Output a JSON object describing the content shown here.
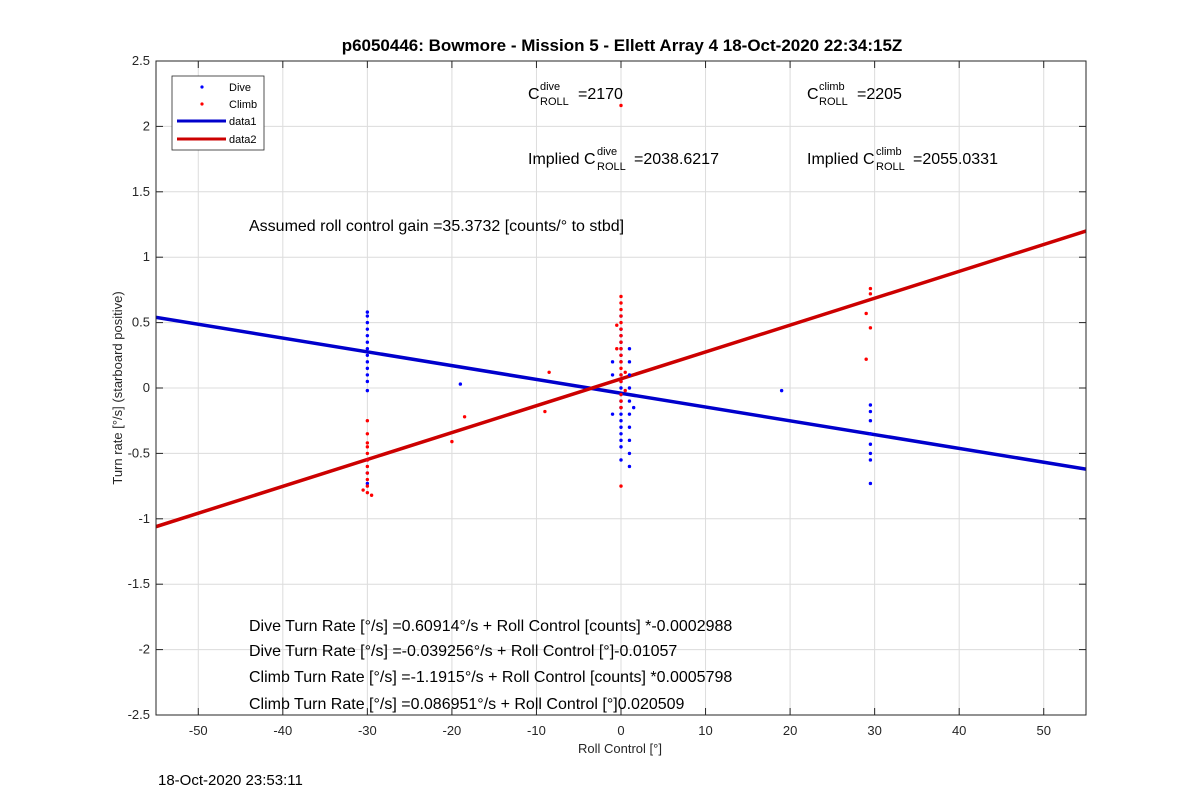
{
  "chart_data": {
    "type": "scatter",
    "title": "p6050446: Bowmore - Mission 5 - Ellett Array 4 18-Oct-2020 22:34:15Z",
    "xlabel": "Roll Control [°]",
    "ylabel": "Turn rate [°/s] (starboard positive)",
    "xlim": [
      -55,
      55
    ],
    "ylim": [
      -2.5,
      2.5
    ],
    "xticks": [
      -50,
      -40,
      -30,
      -20,
      -10,
      0,
      10,
      20,
      30,
      40,
      50
    ],
    "yticks": [
      -2.5,
      -2,
      -1.5,
      -1,
      -0.5,
      0,
      0.5,
      1,
      1.5,
      2,
      2.5
    ],
    "grid": true,
    "legend_position": "top-left",
    "series": [
      {
        "name": "Dive",
        "kind": "points",
        "color": "#0000ff",
        "points": [
          [
            -30,
            0.58
          ],
          [
            -30,
            0.55
          ],
          [
            -30,
            0.5
          ],
          [
            -30,
            0.45
          ],
          [
            -30,
            0.4
          ],
          [
            -30,
            0.35
          ],
          [
            -30,
            0.3
          ],
          [
            -30,
            0.25
          ],
          [
            -30,
            0.2
          ],
          [
            -30,
            0.15
          ],
          [
            -30,
            0.1
          ],
          [
            -30,
            0.05
          ],
          [
            -30,
            -0.02
          ],
          [
            -30,
            -0.55
          ],
          [
            -30,
            -0.65
          ],
          [
            -30,
            -0.73
          ],
          [
            -19,
            0.03
          ],
          [
            -1,
            0.2
          ],
          [
            -1,
            0.1
          ],
          [
            -1,
            -0.2
          ],
          [
            0,
            0.55
          ],
          [
            0,
            0.45
          ],
          [
            0,
            0.4
          ],
          [
            0,
            0.35
          ],
          [
            0,
            0.3
          ],
          [
            0,
            0.25
          ],
          [
            0,
            0.2
          ],
          [
            0,
            0.1
          ],
          [
            0,
            0.05
          ],
          [
            0,
            0.0
          ],
          [
            0,
            -0.05
          ],
          [
            0,
            -0.1
          ],
          [
            0,
            -0.15
          ],
          [
            0,
            -0.2
          ],
          [
            0,
            -0.25
          ],
          [
            0,
            -0.3
          ],
          [
            0,
            -0.35
          ],
          [
            0,
            -0.4
          ],
          [
            0,
            -0.45
          ],
          [
            0,
            -0.55
          ],
          [
            1,
            0.3
          ],
          [
            1,
            0.2
          ],
          [
            1,
            0.1
          ],
          [
            1,
            0.0
          ],
          [
            1,
            -0.1
          ],
          [
            1,
            -0.2
          ],
          [
            1,
            -0.3
          ],
          [
            1,
            -0.4
          ],
          [
            1,
            -0.5
          ],
          [
            1,
            -0.6
          ],
          [
            1.5,
            -0.15
          ],
          [
            19,
            -0.02
          ],
          [
            29.5,
            -0.13
          ],
          [
            29.5,
            -0.18
          ],
          [
            29.5,
            -0.25
          ],
          [
            29.5,
            -0.35
          ],
          [
            29.5,
            -0.43
          ],
          [
            29.5,
            -0.5
          ],
          [
            29.5,
            -0.55
          ],
          [
            29.5,
            -0.73
          ]
        ]
      },
      {
        "name": "Climb",
        "kind": "points",
        "color": "#ff0000",
        "points": [
          [
            -30,
            -0.25
          ],
          [
            -30,
            -0.35
          ],
          [
            -30,
            -0.42
          ],
          [
            -30,
            -0.45
          ],
          [
            -30,
            -0.5
          ],
          [
            -30,
            -0.55
          ],
          [
            -30,
            -0.6
          ],
          [
            -30,
            -0.65
          ],
          [
            -30,
            -0.7
          ],
          [
            -30,
            -0.75
          ],
          [
            -30,
            -0.8
          ],
          [
            -30.5,
            -0.78
          ],
          [
            -29.5,
            -0.82
          ],
          [
            -20,
            -0.41
          ],
          [
            -18.5,
            -0.22
          ],
          [
            -9,
            -0.18
          ],
          [
            -8.5,
            0.12
          ],
          [
            0,
            2.16
          ],
          [
            0,
            0.7
          ],
          [
            0,
            0.65
          ],
          [
            0,
            0.6
          ],
          [
            0,
            0.55
          ],
          [
            0,
            0.5
          ],
          [
            0,
            0.45
          ],
          [
            0,
            0.4
          ],
          [
            0,
            0.35
          ],
          [
            0,
            0.3
          ],
          [
            0,
            0.25
          ],
          [
            0,
            0.2
          ],
          [
            0,
            0.15
          ],
          [
            0,
            0.1
          ],
          [
            0,
            0.05
          ],
          [
            0,
            -0.05
          ],
          [
            0,
            -0.1
          ],
          [
            0,
            -0.15
          ],
          [
            -0.5,
            0.48
          ],
          [
            -0.5,
            0.3
          ],
          [
            0.5,
            0.12
          ],
          [
            0.5,
            -0.02
          ],
          [
            0,
            -0.75
          ],
          [
            29,
            0.57
          ],
          [
            29,
            0.22
          ],
          [
            29.5,
            0.76
          ],
          [
            29.5,
            0.72
          ],
          [
            29.5,
            0.46
          ]
        ]
      },
      {
        "name": "data1",
        "kind": "line",
        "color": "#0000cc",
        "x": [
          -55,
          55
        ],
        "y": [
          0.54,
          -0.62
        ]
      },
      {
        "name": "data2",
        "kind": "line",
        "color": "#cc0000",
        "x": [
          -55,
          55
        ],
        "y": [
          -1.06,
          1.2
        ]
      }
    ],
    "annotations": {
      "c_roll_dive": "=2170",
      "c_roll_climb": "=2205",
      "implied_prefix": "Implied C",
      "implied_dive": "=2038.6217",
      "implied_climb": "=2055.0331",
      "c_base": "C",
      "sub_roll": "ROLL",
      "sup_dive": "dive",
      "sup_climb": "climb",
      "gain": "Assumed roll control gain =35.3732 [counts/° to stbd]",
      "fit_lines": [
        "Dive Turn Rate [°/s] =0.60914°/s + Roll Control [counts] *-0.0002988",
        "Dive Turn Rate [°/s] =-0.039256°/s + Roll Control [°]-0.01057",
        "Climb Turn Rate [°/s] =-1.1915°/s + Roll Control [counts] *0.0005798",
        "Climb Turn Rate [°/s] =0.086951°/s + Roll Control [°]0.020509"
      ]
    }
  },
  "timestamp": "18-Oct-2020 23:53:11"
}
